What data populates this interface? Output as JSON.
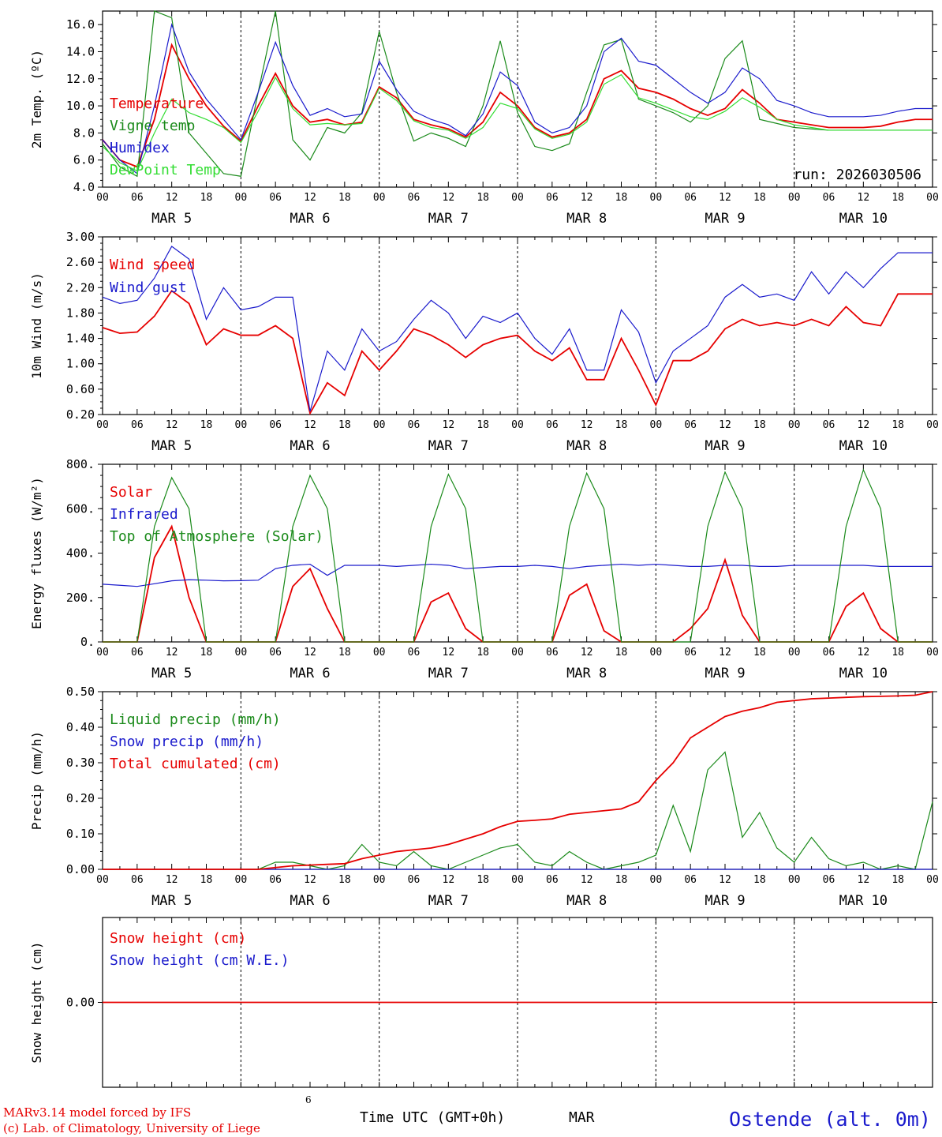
{
  "colors": {
    "red": "#e60000",
    "green": "#1a8a1a",
    "blue": "#1a1acc",
    "lightgreen": "#33dd33"
  },
  "x_tick_labels": [
    "00",
    "06",
    "12",
    "18"
  ],
  "day_labels": [
    "MAR  5",
    "MAR  6",
    "MAR  7",
    "MAR  8",
    "MAR  9",
    "MAR 10"
  ],
  "footer": {
    "model": "MARv3.14 model forced by IFS",
    "lab": "(c) Lab. of Climatology, University of Liege",
    "time_axis": "Time UTC (GMT+0h)",
    "month": "MAR",
    "small_label": "6",
    "station": "Ostende (alt. 0m)"
  },
  "chart_data": [
    {
      "type": "line",
      "ylabel": "2m Temp. (ºC)",
      "ylim": [
        4.0,
        17.0
      ],
      "yticks": [
        "4.0",
        "6.0",
        "8.0",
        "10.0",
        "12.0",
        "14.0",
        "16.0"
      ],
      "annotation": "run: 2026030506",
      "x_hours": [
        0,
        3,
        6,
        9,
        12,
        15,
        18,
        21,
        24,
        27,
        30,
        33,
        36,
        39,
        42,
        45,
        48,
        51,
        54,
        57,
        60,
        63,
        66,
        69,
        72,
        75,
        78,
        81,
        84,
        87,
        90,
        93,
        96,
        99,
        102,
        105,
        108,
        111,
        114,
        117,
        120,
        123,
        126,
        129,
        132,
        135,
        138,
        141,
        144
      ],
      "series": [
        {
          "name": "Temperature",
          "color": "red",
          "values": [
            7.5,
            6.0,
            5.5,
            9.0,
            14.5,
            12.0,
            10.0,
            8.5,
            7.4,
            10.0,
            12.4,
            10.0,
            8.8,
            9.0,
            8.6,
            8.8,
            11.4,
            10.6,
            9.0,
            8.6,
            8.3,
            7.7,
            8.8,
            11.0,
            10.0,
            8.4,
            7.7,
            8.0,
            9.0,
            12.0,
            12.6,
            11.3,
            11.0,
            10.5,
            9.8,
            9.3,
            9.8,
            11.2,
            10.2,
            9.0,
            8.8,
            8.6,
            8.4,
            8.4,
            8.4,
            8.5,
            8.8,
            9.0,
            9.0
          ]
        },
        {
          "name": "Vigne temp",
          "color": "green",
          "values": [
            7.2,
            5.5,
            4.8,
            17.0,
            16.5,
            8.0,
            6.5,
            5.0,
            4.8,
            11.0,
            17.0,
            7.5,
            6.0,
            8.4,
            8.0,
            9.5,
            15.5,
            11.0,
            7.4,
            8.0,
            7.6,
            7.0,
            10.0,
            14.8,
            9.5,
            7.0,
            6.7,
            7.2,
            11.0,
            14.5,
            14.9,
            10.5,
            10.0,
            9.5,
            8.8,
            10.0,
            13.5,
            14.8,
            9.0,
            8.7,
            8.4,
            8.3,
            8.2,
            8.2,
            8.2,
            8.2,
            8.2,
            8.2,
            8.2
          ]
        },
        {
          "name": "Humidex",
          "color": "blue",
          "values": [
            7.5,
            6.0,
            5.0,
            10.0,
            16.0,
            12.5,
            10.5,
            9.0,
            7.5,
            11.0,
            14.7,
            11.5,
            9.3,
            9.8,
            9.2,
            9.4,
            13.3,
            11.2,
            9.6,
            9.0,
            8.6,
            7.8,
            9.4,
            12.5,
            11.5,
            8.8,
            8.0,
            8.4,
            10.0,
            14.0,
            15.0,
            13.3,
            13.0,
            12.0,
            11.0,
            10.2,
            11.0,
            12.8,
            12.0,
            10.4,
            10.0,
            9.5,
            9.2,
            9.2,
            9.2,
            9.3,
            9.6,
            9.8,
            9.8
          ]
        },
        {
          "name": "DewPoint Temp",
          "color": "lightgreen",
          "values": [
            7.0,
            5.8,
            5.2,
            8.0,
            10.5,
            9.5,
            9.0,
            8.4,
            7.3,
            9.6,
            12.1,
            9.8,
            8.6,
            8.7,
            8.6,
            8.7,
            11.3,
            10.4,
            8.9,
            8.4,
            8.2,
            7.6,
            8.4,
            10.2,
            9.8,
            8.3,
            7.6,
            7.9,
            8.8,
            11.6,
            12.3,
            10.6,
            10.2,
            9.7,
            9.2,
            9.0,
            9.6,
            10.6,
            9.9,
            9.0,
            8.6,
            8.4,
            8.2,
            8.2,
            8.2,
            8.2,
            8.2,
            8.2,
            8.2
          ]
        }
      ]
    },
    {
      "type": "line",
      "ylabel": "10m Wind (m/s)",
      "ylim": [
        0.2,
        3.0
      ],
      "yticks": [
        "0.20",
        "0.60",
        "1.00",
        "1.40",
        "1.80",
        "2.20",
        "2.60",
        "3.00"
      ],
      "x_hours": [
        0,
        3,
        6,
        9,
        12,
        15,
        18,
        21,
        24,
        27,
        30,
        33,
        36,
        39,
        42,
        45,
        48,
        51,
        54,
        57,
        60,
        63,
        66,
        69,
        72,
        75,
        78,
        81,
        84,
        87,
        90,
        93,
        96,
        99,
        102,
        105,
        108,
        111,
        114,
        117,
        120,
        123,
        126,
        129,
        132,
        135,
        138,
        141,
        144
      ],
      "series": [
        {
          "name": "Wind speed",
          "color": "red",
          "values": [
            1.57,
            1.48,
            1.5,
            1.75,
            2.15,
            1.95,
            1.3,
            1.55,
            1.45,
            1.45,
            1.6,
            1.4,
            0.22,
            0.7,
            0.5,
            1.2,
            0.9,
            1.2,
            1.55,
            1.45,
            1.3,
            1.1,
            1.3,
            1.4,
            1.45,
            1.2,
            1.05,
            1.25,
            0.75,
            0.75,
            1.4,
            0.9,
            0.35,
            1.05,
            1.05,
            1.2,
            1.55,
            1.7,
            1.6,
            1.65,
            1.6,
            1.7,
            1.6,
            1.9,
            1.65,
            1.6,
            2.1,
            2.1,
            2.1
          ]
        },
        {
          "name": "Wind gust",
          "color": "blue",
          "values": [
            2.05,
            1.95,
            2.0,
            2.35,
            2.85,
            2.65,
            1.7,
            2.2,
            1.85,
            1.9,
            2.05,
            2.05,
            0.25,
            1.2,
            0.9,
            1.55,
            1.2,
            1.35,
            1.7,
            2.0,
            1.8,
            1.4,
            1.75,
            1.65,
            1.8,
            1.4,
            1.15,
            1.55,
            0.9,
            0.9,
            1.85,
            1.5,
            0.7,
            1.2,
            1.4,
            1.6,
            2.05,
            2.25,
            2.05,
            2.1,
            2.0,
            2.45,
            2.1,
            2.45,
            2.2,
            2.5,
            2.75,
            2.75,
            2.75
          ]
        }
      ]
    },
    {
      "type": "line",
      "ylabel": "Energy fluxes (W/m²)",
      "ylim": [
        0,
        800
      ],
      "yticks": [
        "0.",
        "200.",
        "400.",
        "600.",
        "800."
      ],
      "x_hours": [
        0,
        3,
        6,
        9,
        12,
        15,
        18,
        21,
        24,
        27,
        30,
        33,
        36,
        39,
        42,
        45,
        48,
        51,
        54,
        57,
        60,
        63,
        66,
        69,
        72,
        75,
        78,
        81,
        84,
        87,
        90,
        93,
        96,
        99,
        102,
        105,
        108,
        111,
        114,
        117,
        120,
        123,
        126,
        129,
        132,
        135,
        138,
        141,
        144
      ],
      "series": [
        {
          "name": "Solar",
          "color": "red",
          "values": [
            0,
            0,
            0,
            380,
            520,
            200,
            0,
            0,
            0,
            0,
            0,
            250,
            330,
            150,
            0,
            0,
            0,
            0,
            0,
            180,
            220,
            60,
            0,
            0,
            0,
            0,
            0,
            210,
            260,
            50,
            0,
            0,
            0,
            0,
            60,
            150,
            370,
            120,
            0,
            0,
            0,
            0,
            0,
            160,
            220,
            60,
            0,
            0,
            0
          ]
        },
        {
          "name": "Infrared",
          "color": "blue",
          "values": [
            260,
            255,
            250,
            262,
            275,
            280,
            278,
            275,
            276,
            278,
            330,
            345,
            350,
            300,
            345,
            345,
            345,
            340,
            345,
            350,
            345,
            330,
            335,
            340,
            340,
            345,
            340,
            330,
            340,
            345,
            350,
            345,
            350,
            345,
            340,
            340,
            345,
            345,
            340,
            340,
            345,
            345,
            345,
            345,
            345,
            340,
            340,
            340,
            340
          ]
        },
        {
          "name": "Top of Atmosphere (Solar)",
          "color": "green",
          "values": [
            0,
            0,
            0,
            520,
            740,
            600,
            0,
            0,
            0,
            0,
            0,
            520,
            750,
            600,
            0,
            0,
            0,
            0,
            0,
            520,
            755,
            600,
            0,
            0,
            0,
            0,
            0,
            520,
            760,
            600,
            0,
            0,
            0,
            0,
            0,
            520,
            765,
            600,
            0,
            0,
            0,
            0,
            0,
            520,
            775,
            600,
            0,
            0,
            0
          ]
        }
      ]
    },
    {
      "type": "line",
      "ylabel": "Precip (mm/h)",
      "ylim": [
        0,
        0.5
      ],
      "yticks": [
        "0.00",
        "0.10",
        "0.20",
        "0.30",
        "0.40",
        "0.50"
      ],
      "x_hours": [
        0,
        3,
        6,
        9,
        12,
        15,
        18,
        21,
        24,
        27,
        30,
        33,
        36,
        39,
        42,
        45,
        48,
        51,
        54,
        57,
        60,
        63,
        66,
        69,
        72,
        75,
        78,
        81,
        84,
        87,
        90,
        93,
        96,
        99,
        102,
        105,
        108,
        111,
        114,
        117,
        120,
        123,
        126,
        129,
        132,
        135,
        138,
        141,
        144
      ],
      "series": [
        {
          "name": "Liquid precip (mm/h)",
          "color": "green",
          "values": [
            0,
            0,
            0,
            0,
            0,
            0,
            0,
            0,
            0,
            0,
            0.02,
            0.02,
            0.01,
            0.0,
            0.01,
            0.07,
            0.02,
            0.01,
            0.05,
            0.01,
            0.0,
            0.02,
            0.04,
            0.06,
            0.07,
            0.02,
            0.01,
            0.05,
            0.02,
            0.0,
            0.01,
            0.02,
            0.04,
            0.18,
            0.05,
            0.28,
            0.33,
            0.09,
            0.16,
            0.06,
            0.02,
            0.09,
            0.03,
            0.01,
            0.02,
            0.0,
            0.01,
            0.0,
            0.19
          ]
        },
        {
          "name": "Snow precip (mm/h)",
          "color": "blue",
          "values": [
            0,
            0,
            0,
            0,
            0,
            0,
            0,
            0,
            0,
            0,
            0,
            0,
            0,
            0,
            0,
            0,
            0,
            0,
            0,
            0,
            0,
            0,
            0,
            0,
            0,
            0,
            0,
            0,
            0,
            0,
            0,
            0,
            0,
            0,
            0,
            0,
            0,
            0,
            0,
            0,
            0,
            0,
            0,
            0,
            0,
            0,
            0,
            0,
            0
          ]
        },
        {
          "name": "Total cumulated (cm)",
          "color": "red",
          "values": [
            0,
            0,
            0,
            0,
            0,
            0,
            0,
            0,
            0,
            0,
            0.005,
            0.01,
            0.012,
            0.014,
            0.016,
            0.03,
            0.04,
            0.05,
            0.055,
            0.06,
            0.07,
            0.085,
            0.1,
            0.12,
            0.135,
            0.138,
            0.142,
            0.155,
            0.16,
            0.165,
            0.17,
            0.19,
            0.25,
            0.3,
            0.37,
            0.4,
            0.43,
            0.445,
            0.455,
            0.47,
            0.475,
            0.48,
            0.482,
            0.484,
            0.486,
            0.487,
            0.488,
            0.49,
            0.51
          ]
        }
      ]
    },
    {
      "type": "line",
      "ylabel": "Snow height (cm)",
      "ylim": [
        -1,
        1
      ],
      "yticks": [
        "0.00"
      ],
      "x_hours": [
        0,
        144
      ],
      "series": [
        {
          "name": "Snow height (cm)",
          "color": "red",
          "values": [
            0,
            0
          ]
        },
        {
          "name": "Snow height (cm W.E.)",
          "color": "blue",
          "values": []
        }
      ]
    }
  ]
}
